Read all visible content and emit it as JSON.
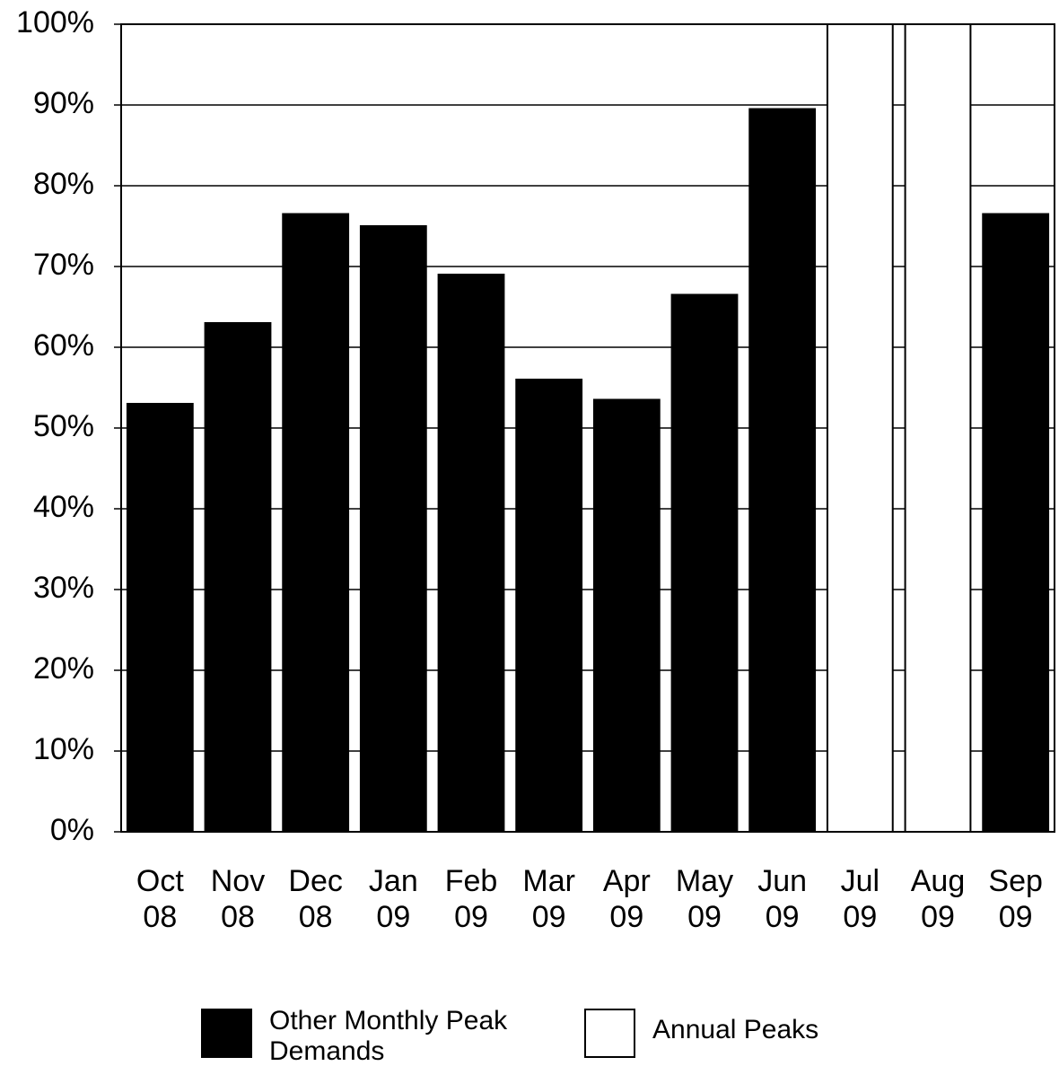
{
  "chart_data": {
    "type": "bar",
    "categories": [
      "Oct 08",
      "Nov 08",
      "Dec 08",
      "Jan 09",
      "Feb 09",
      "Mar 09",
      "Apr 09",
      "May 09",
      "Jun 09",
      "Jul 09",
      "Aug 09",
      "Sep 09"
    ],
    "series": [
      {
        "name": "Other Monthly Peak Demands",
        "color": "#000000",
        "values": [
          53,
          63,
          76.5,
          75,
          69,
          56,
          53.5,
          66.5,
          89.5,
          null,
          null,
          76.5
        ]
      },
      {
        "name": "Annual Peaks",
        "color": "#ffffff",
        "values": [
          null,
          null,
          null,
          null,
          null,
          null,
          null,
          null,
          null,
          100,
          100,
          null
        ]
      }
    ],
    "ylim": [
      0,
      100
    ],
    "yticks": [
      {
        "value": 0,
        "label": "0%"
      },
      {
        "value": 10,
        "label": "10%"
      },
      {
        "value": 20,
        "label": "20%"
      },
      {
        "value": 30,
        "label": "30%"
      },
      {
        "value": 40,
        "label": "40%"
      },
      {
        "value": 50,
        "label": "50%"
      },
      {
        "value": 60,
        "label": "60%"
      },
      {
        "value": 70,
        "label": "70%"
      },
      {
        "value": 80,
        "label": "80%"
      },
      {
        "value": 90,
        "label": "90%"
      },
      {
        "value": 100,
        "label": "100%"
      }
    ],
    "grid": true
  }
}
